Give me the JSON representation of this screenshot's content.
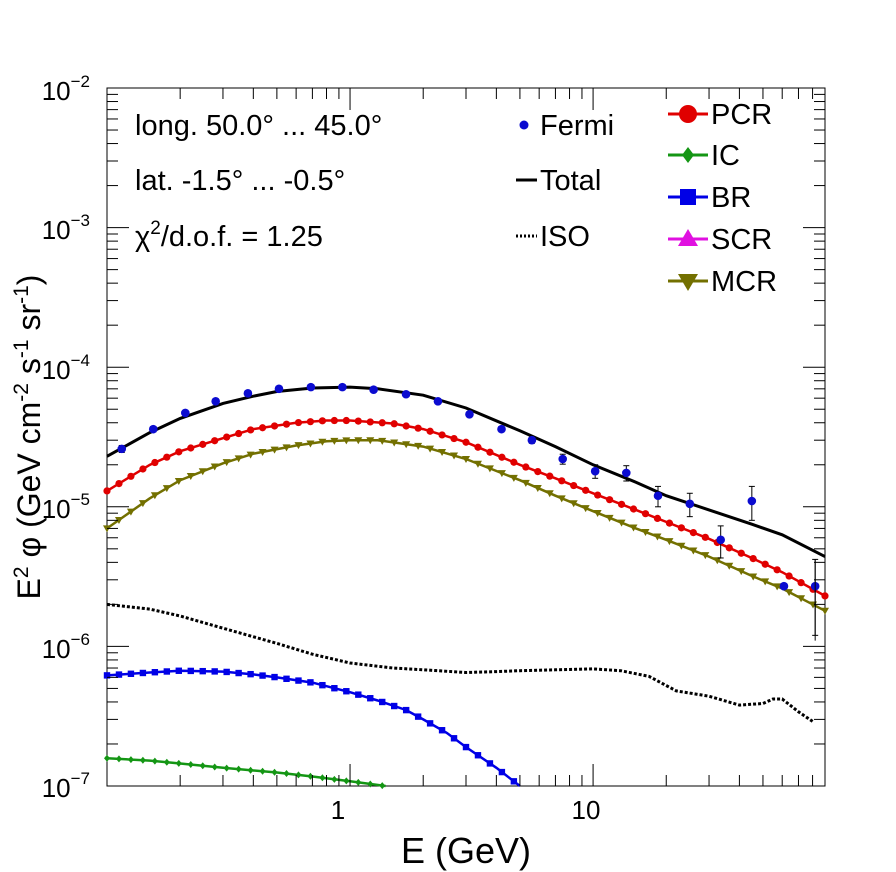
{
  "chart_data": {
    "type": "line",
    "xlabel": "E (GeV)",
    "ylabel_parts": {
      "a": "E",
      "b": "2",
      "c": "φ (GeV cm",
      "d": "-2",
      "e": " s",
      "f": "-1",
      "g": " sr",
      "h": "-1",
      "i": ")"
    },
    "xscale": "log",
    "yscale": "log",
    "xlim": [
      0.1,
      90
    ],
    "ylim": [
      1e-07,
      0.01
    ],
    "x_tick_labels": [
      {
        "value": 1,
        "label": "1"
      },
      {
        "value": 10,
        "label": "10"
      }
    ],
    "y_tick_labels": [
      {
        "value": 1e-07,
        "base": "10",
        "exp": "−7"
      },
      {
        "value": 1e-06,
        "base": "10",
        "exp": "−6"
      },
      {
        "value": 1e-05,
        "base": "10",
        "exp": "−5"
      },
      {
        "value": 0.0001,
        "base": "10",
        "exp": "−4"
      },
      {
        "value": 0.001,
        "base": "10",
        "exp": "−3"
      },
      {
        "value": 0.01,
        "base": "10",
        "exp": "−2"
      }
    ],
    "annotations": {
      "longitude": "long. 50.0° ... 45.0°",
      "latitude": "lat. -1.5° ... -0.5°",
      "chi_prefix": "χ",
      "chi_exp": "2",
      "chi_suffix": "/d.o.f. = 1.25"
    },
    "legend_placement": "top-right",
    "legend": [
      {
        "label": "Fermi",
        "color": "#0b0bd0",
        "marker": "dot"
      },
      {
        "label": "Total",
        "color": "#000000",
        "marker": "line"
      },
      {
        "label": "ISO",
        "color": "#000000",
        "marker": "dotted"
      },
      {
        "label": "PCR",
        "color": "#e00000",
        "marker": "circle"
      },
      {
        "label": "IC",
        "color": "#149614",
        "marker": "diamond"
      },
      {
        "label": "BR",
        "color": "#0000e6",
        "marker": "square"
      },
      {
        "label": "SCR",
        "color": "#e010e0",
        "marker": "triangle-up"
      },
      {
        "label": "MCR",
        "color": "#737000",
        "marker": "triangle-down"
      }
    ],
    "fermi": {
      "x": [
        0.115,
        0.155,
        0.21,
        0.28,
        0.38,
        0.51,
        0.69,
        0.93,
        1.25,
        1.7,
        2.3,
        3.1,
        4.2,
        5.6,
        7.5,
        10.2,
        13.7,
        18.5,
        25,
        33.5,
        45,
        61,
        82
      ],
      "y": [
        2.6e-05,
        3.6e-05,
        4.7e-05,
        5.7e-05,
        6.5e-05,
        7e-05,
        7.2e-05,
        7.2e-05,
        6.9e-05,
        6.4e-05,
        5.7e-05,
        4.6e-05,
        3.6e-05,
        3e-05,
        2.2e-05,
        1.8e-05,
        1.75e-05,
        1.2e-05,
        1.05e-05,
        5.8e-06,
        1.1e-05,
        2.7e-06,
        2.7e-06
      ],
      "yerr": [
        1.5e-06,
        1.5e-06,
        1.5e-06,
        1.5e-06,
        1.5e-06,
        1.5e-06,
        1.5e-06,
        1.5e-06,
        1.5e-06,
        1.5e-06,
        1.5e-06,
        1.5e-06,
        1.5e-06,
        1.5e-06,
        1.8e-06,
        2e-06,
        2.2e-06,
        2e-06,
        2e-06,
        1.5e-06,
        3e-06,
        0,
        1.5e-06
      ]
    },
    "series": [
      {
        "name": "Total",
        "style": "solid",
        "x": [
          0.1,
          0.15,
          0.2,
          0.3,
          0.4,
          0.5,
          0.7,
          1.0,
          1.3,
          2.0,
          3.0,
          5.0,
          7.0,
          10,
          15,
          20,
          30,
          45,
          60,
          90
        ],
        "y": [
          2.3e-05,
          3.4e-05,
          4.3e-05,
          5.5e-05,
          6.2e-05,
          6.7e-05,
          7.1e-05,
          7.2e-05,
          7e-05,
          6.3e-05,
          5.1e-05,
          3.5e-05,
          2.7e-05,
          2e-05,
          1.5e-05,
          1.2e-05,
          9.5e-06,
          7.5e-06,
          6.3e-06,
          4.4e-06
        ]
      },
      {
        "name": "PCR",
        "style": "markers",
        "x": [
          0.1,
          0.15,
          0.2,
          0.3,
          0.4,
          0.6,
          0.8,
          1.0,
          1.5,
          2.0,
          3.0,
          5.0,
          7.0,
          10,
          15,
          20,
          30,
          45,
          60,
          90
        ],
        "y": [
          1.3e-05,
          2e-05,
          2.5e-05,
          3.1e-05,
          3.6e-05,
          4e-05,
          4.15e-05,
          4.15e-05,
          3.95e-05,
          3.6e-05,
          2.9e-05,
          2e-05,
          1.6e-05,
          1.25e-05,
          9.5e-06,
          7.8e-06,
          5.9e-06,
          4.3e-06,
          3.4e-06,
          2.3e-06
        ]
      },
      {
        "name": "MCR",
        "style": "markers",
        "x": [
          0.1,
          0.15,
          0.2,
          0.3,
          0.4,
          0.6,
          0.8,
          1.0,
          1.3,
          2.0,
          3.0,
          5.0,
          7.0,
          10,
          15,
          20,
          30,
          45,
          60,
          90
        ],
        "y": [
          7e-06,
          1.15e-05,
          1.55e-05,
          2.05e-05,
          2.4e-05,
          2.75e-05,
          2.95e-05,
          3e-05,
          3e-05,
          2.7e-05,
          2.2e-05,
          1.55e-05,
          1.2e-05,
          9.3e-06,
          7e-06,
          5.8e-06,
          4.4e-06,
          3.2e-06,
          2.6e-06,
          1.8e-06
        ]
      },
      {
        "name": "ISO",
        "style": "dotted",
        "x": [
          0.1,
          0.15,
          0.2,
          0.3,
          0.5,
          0.7,
          1.0,
          1.5,
          2.0,
          3.0,
          4.0,
          5.0,
          7.0,
          10,
          13,
          17,
          22,
          30,
          40,
          50,
          55,
          60,
          70,
          80
        ],
        "y": [
          2e-06,
          1.85e-06,
          1.65e-06,
          1.35e-06,
          1.05e-06,
          8.8e-07,
          7.6e-07,
          7e-07,
          6.8e-07,
          6.5e-07,
          6.6e-07,
          6.7e-07,
          6.8e-07,
          6.9e-07,
          6.7e-07,
          6.1e-07,
          4.8e-07,
          4.4e-07,
          3.8e-07,
          3.9e-07,
          4.2e-07,
          4.2e-07,
          3.4e-07,
          2.9e-07
        ]
      },
      {
        "name": "BR",
        "style": "markers",
        "x": [
          0.1,
          0.15,
          0.2,
          0.3,
          0.4,
          0.5,
          0.7,
          1.0,
          1.3,
          1.7,
          2.0,
          2.5,
          3.0,
          4.0,
          5.0
        ],
        "y": [
          6.2e-07,
          6.5e-07,
          6.7e-07,
          6.6e-07,
          6.3e-07,
          6e-07,
          5.5e-07,
          4.7e-07,
          4.1e-07,
          3.5e-07,
          3e-07,
          2.4e-07,
          1.9e-07,
          1.35e-07,
          1e-07
        ]
      },
      {
        "name": "IC",
        "style": "markers",
        "x": [
          0.1,
          0.15,
          0.2,
          0.3,
          0.5,
          0.7,
          1.0,
          1.4
        ],
        "y": [
          1.58e-07,
          1.52e-07,
          1.45e-07,
          1.35e-07,
          1.25e-07,
          1.17e-07,
          1.08e-07,
          1e-07
        ]
      }
    ]
  }
}
